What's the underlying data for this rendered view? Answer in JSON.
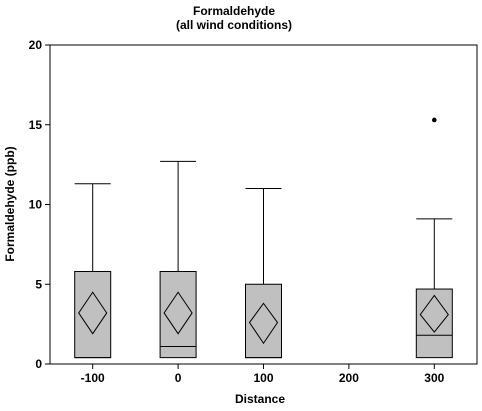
{
  "chart_data": {
    "type": "box",
    "title": "Formaldehyde",
    "subtitle": "(all wind conditions)",
    "xlabel": "Distance",
    "ylabel": "Formaldehyde (ppb)",
    "ylim": [
      0,
      20
    ],
    "yticks": [
      "0",
      "5",
      "10",
      "15",
      "20"
    ],
    "xlim": [
      -150,
      350
    ],
    "xticks": [
      "-100",
      "0",
      "100",
      "200",
      "300"
    ],
    "grid": false,
    "box_color": "#c0c0c0",
    "boxes": [
      {
        "x": -100,
        "min": 0.4,
        "q1": 0.4,
        "median": 0.4,
        "q3": 5.8,
        "max": 11.3,
        "mean": 3.2,
        "mean_ci": [
          1.9,
          4.5
        ],
        "outliers": []
      },
      {
        "x": 0,
        "min": 0.4,
        "q1": 0.4,
        "median": 1.1,
        "q3": 5.8,
        "max": 12.7,
        "mean": 3.2,
        "mean_ci": [
          1.9,
          4.5
        ],
        "outliers": []
      },
      {
        "x": 100,
        "min": 0.4,
        "q1": 0.4,
        "median": 0.4,
        "q3": 5.0,
        "max": 11.0,
        "mean": 2.6,
        "mean_ci": [
          1.3,
          3.8
        ],
        "outliers": []
      },
      {
        "x": 300,
        "min": 0.4,
        "q1": 0.4,
        "median": 1.8,
        "q3": 4.7,
        "max": 9.1,
        "mean": 3.1,
        "mean_ci": [
          2.0,
          4.3
        ],
        "outliers": [
          15.3
        ]
      }
    ]
  }
}
